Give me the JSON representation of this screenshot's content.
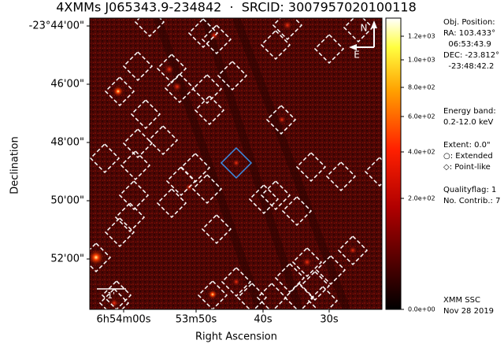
{
  "title": "4XMMs J065343.9-234842  ·  SRCID: 3007957020100118",
  "x_axis": {
    "label": "Right Ascension",
    "ticks": [
      "6h54m00s",
      "53m50s",
      "40s",
      "30s"
    ]
  },
  "y_axis": {
    "label": "Declination",
    "ticks": [
      "-23°44'00\"",
      "46'00\"",
      "48'00\"",
      "50'00\"",
      "52'00\""
    ]
  },
  "colorbar": {
    "ticks": [
      "1.2e+03",
      "1.0e+03",
      "8.0e+02",
      "6.0e+02",
      "4.0e+02",
      "2.0e+02",
      "0.0e+00"
    ]
  },
  "compass": {
    "north": "N",
    "east": "E"
  },
  "scale_bar": "1'",
  "info": {
    "position": [
      "Obj. Position:",
      "RA: 103.433°",
      "  06:53:43.9",
      "DEC: -23.812°",
      "  -23:48:42.2"
    ],
    "energy": [
      "Energy band:",
      "0.2-12.0 keV"
    ],
    "extent": [
      "Extent: 0.0\"",
      "○: Extended",
      "◇: Point-like"
    ],
    "quality": [
      "Qualityflag: 1",
      "No. Contrib.: 7"
    ],
    "footer": [
      "XMM SSC",
      "Nov 28 2019"
    ]
  }
}
